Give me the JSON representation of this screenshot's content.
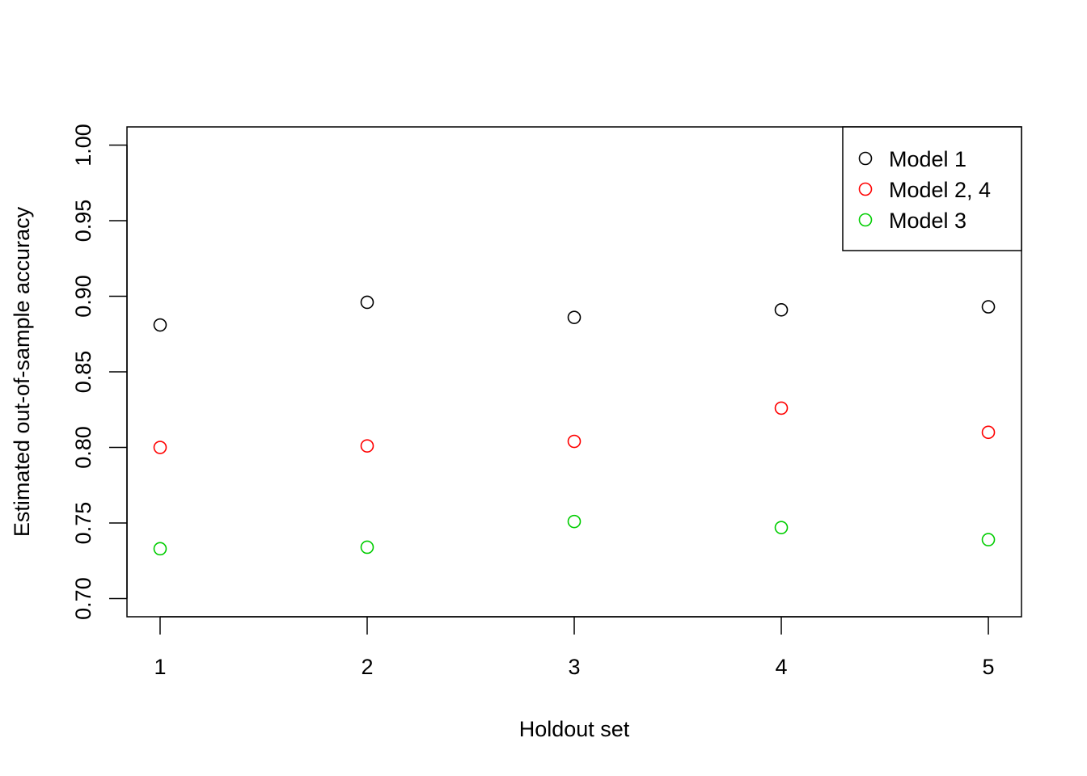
{
  "chart_data": {
    "type": "scatter",
    "title": "",
    "xlabel": "Holdout set",
    "ylabel": "Estimated out-of-sample accuracy",
    "x": [
      1,
      2,
      3,
      4,
      5
    ],
    "x_ticks": [
      "1",
      "2",
      "3",
      "4",
      "5"
    ],
    "xlim": [
      0.84,
      5.16
    ],
    "ylim": [
      0.688,
      1.012
    ],
    "y_ticks": [
      "0.70",
      "0.75",
      "0.80",
      "0.85",
      "0.90",
      "0.95",
      "1.00"
    ],
    "y_tick_values": [
      0.7,
      0.75,
      0.8,
      0.85,
      0.9,
      0.95,
      1.0
    ],
    "grid": false,
    "legend_position": "top-right",
    "marker": "open-circle",
    "series": [
      {
        "name": "Model 1",
        "color": "#000000",
        "values": [
          0.881,
          0.896,
          0.886,
          0.891,
          0.893
        ]
      },
      {
        "name": "Model 2, 4",
        "color": "#ff0000",
        "values": [
          0.8,
          0.801,
          0.804,
          0.826,
          0.81
        ]
      },
      {
        "name": "Model 3",
        "color": "#00cd00",
        "values": [
          0.733,
          0.734,
          0.751,
          0.747,
          0.739
        ]
      }
    ]
  }
}
